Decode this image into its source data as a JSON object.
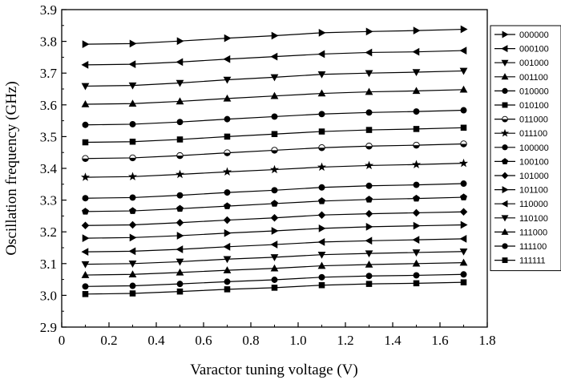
{
  "chart_data": {
    "type": "line",
    "xlabel": "Varactor tuning voltage (V)",
    "ylabel": "Oscillation frequency (GHz)",
    "xlim": [
      0,
      1.8
    ],
    "ylim": [
      2.9,
      3.9
    ],
    "xticks": [
      "0",
      "0.2",
      "0.4",
      "0.6",
      "0.8",
      "1.0",
      "1.2",
      "1.4",
      "1.6",
      "1.8"
    ],
    "yticks": [
      "2.9",
      "3.0",
      "3.1",
      "3.2",
      "3.3",
      "3.4",
      "3.5",
      "3.6",
      "3.7",
      "3.8",
      "3.9"
    ],
    "grid": false,
    "legend_position": "right",
    "x": [
      0.1,
      0.3,
      0.5,
      0.7,
      0.9,
      1.1,
      1.3,
      1.5,
      1.7
    ],
    "series": [
      {
        "name": "000000",
        "marker": "triangle-right",
        "values": [
          3.791,
          3.793,
          3.801,
          3.81,
          3.818,
          3.827,
          3.831,
          3.834,
          3.838
        ]
      },
      {
        "name": "000100",
        "marker": "triangle-left",
        "values": [
          3.726,
          3.728,
          3.735,
          3.744,
          3.752,
          3.76,
          3.765,
          3.767,
          3.771
        ]
      },
      {
        "name": "001000",
        "marker": "triangle-down",
        "values": [
          3.659,
          3.661,
          3.669,
          3.679,
          3.687,
          3.696,
          3.7,
          3.703,
          3.707
        ]
      },
      {
        "name": "001100",
        "marker": "triangle-up",
        "values": [
          3.602,
          3.604,
          3.611,
          3.62,
          3.628,
          3.636,
          3.641,
          3.644,
          3.648
        ]
      },
      {
        "name": "010000",
        "marker": "circle",
        "values": [
          3.537,
          3.539,
          3.546,
          3.555,
          3.563,
          3.571,
          3.576,
          3.579,
          3.583
        ]
      },
      {
        "name": "010100",
        "marker": "square",
        "values": [
          3.482,
          3.484,
          3.491,
          3.5,
          3.508,
          3.516,
          3.521,
          3.524,
          3.528
        ]
      },
      {
        "name": "011000",
        "marker": "circle-half",
        "values": [
          3.431,
          3.433,
          3.44,
          3.449,
          3.457,
          3.465,
          3.47,
          3.473,
          3.477
        ]
      },
      {
        "name": "011100",
        "marker": "star",
        "values": [
          3.372,
          3.374,
          3.381,
          3.389,
          3.396,
          3.404,
          3.409,
          3.412,
          3.416
        ]
      },
      {
        "name": "100000",
        "marker": "circle",
        "values": [
          3.306,
          3.308,
          3.315,
          3.324,
          3.331,
          3.34,
          3.345,
          3.348,
          3.352
        ]
      },
      {
        "name": "100100",
        "marker": "pentagon",
        "values": [
          3.264,
          3.266,
          3.273,
          3.281,
          3.289,
          3.297,
          3.302,
          3.305,
          3.309
        ]
      },
      {
        "name": "101000",
        "marker": "diamond",
        "values": [
          3.22,
          3.222,
          3.229,
          3.237,
          3.244,
          3.253,
          3.257,
          3.26,
          3.263
        ]
      },
      {
        "name": "101100",
        "marker": "triangle-right",
        "values": [
          3.18,
          3.182,
          3.188,
          3.196,
          3.203,
          3.211,
          3.216,
          3.219,
          3.222
        ]
      },
      {
        "name": "110000",
        "marker": "triangle-left",
        "values": [
          3.137,
          3.139,
          3.145,
          3.153,
          3.16,
          3.168,
          3.172,
          3.175,
          3.178
        ]
      },
      {
        "name": "110100",
        "marker": "triangle-down",
        "values": [
          3.098,
          3.1,
          3.106,
          3.114,
          3.12,
          3.128,
          3.132,
          3.135,
          3.138
        ]
      },
      {
        "name": "111000",
        "marker": "triangle-up",
        "values": [
          3.064,
          3.066,
          3.072,
          3.079,
          3.085,
          3.093,
          3.097,
          3.1,
          3.103
        ]
      },
      {
        "name": "111100",
        "marker": "circle",
        "values": [
          3.028,
          3.03,
          3.036,
          3.043,
          3.049,
          3.057,
          3.061,
          3.063,
          3.066
        ]
      },
      {
        "name": "111111",
        "marker": "square",
        "values": [
          3.004,
          3.006,
          3.012,
          3.019,
          3.024,
          3.032,
          3.036,
          3.038,
          3.041
        ]
      }
    ]
  }
}
